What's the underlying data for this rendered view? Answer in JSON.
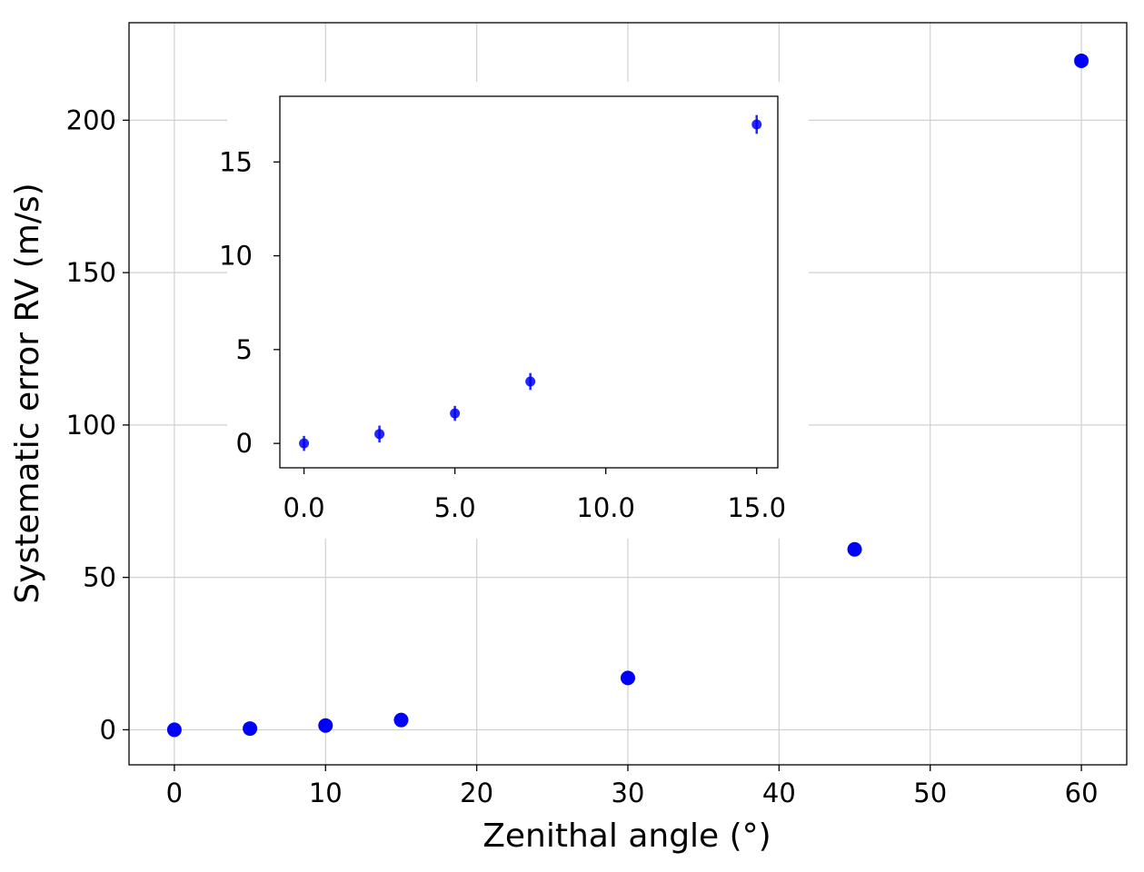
{
  "chart_data": [
    {
      "type": "scatter",
      "panel": "main",
      "xlabel": "Zenithal angle (°)",
      "ylabel": "Systematic error RV (m/s)",
      "xlim": [
        -3,
        63
      ],
      "ylim": [
        -11.5,
        232
      ],
      "x_ticks": [
        0,
        10,
        20,
        30,
        40,
        50,
        60
      ],
      "x_tick_labels": [
        "0",
        "10",
        "20",
        "30",
        "40",
        "50",
        "60"
      ],
      "y_ticks": [
        0,
        50,
        100,
        150,
        200
      ],
      "y_tick_labels": [
        "0",
        "50",
        "100",
        "150",
        "200"
      ],
      "grid": true,
      "series": [
        {
          "color": "#0000ff",
          "x": [
            0,
            5,
            10,
            15,
            30,
            45,
            60
          ],
          "y": [
            0.0,
            0.4,
            1.4,
            3.2,
            17.0,
            59.2,
            219.5
          ]
        }
      ]
    },
    {
      "type": "scatter",
      "panel": "inset",
      "xlabel": "",
      "ylabel": "",
      "xlim": [
        -0.8,
        15.7
      ],
      "ylim": [
        -1.3,
        18.5
      ],
      "x_ticks": [
        0,
        5,
        10,
        15
      ],
      "x_tick_labels": [
        "0.0",
        "5.0",
        "10.0",
        "15.0"
      ],
      "y_ticks": [
        0,
        5,
        10,
        15
      ],
      "y_tick_labels": [
        "0",
        "5",
        "10",
        "15"
      ],
      "grid": false,
      "series": [
        {
          "color": "#0000ff",
          "x": [
            0,
            2.5,
            5,
            7.5,
            15
          ],
          "y": [
            0.0,
            0.5,
            1.6,
            3.3,
            17.0
          ],
          "yerr": [
            0.4,
            0.45,
            0.4,
            0.45,
            0.5
          ]
        }
      ]
    }
  ]
}
